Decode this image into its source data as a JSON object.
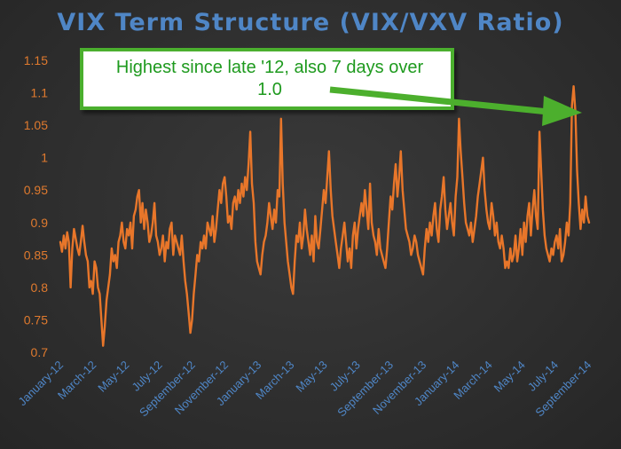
{
  "chart_data": {
    "type": "line",
    "title": "VIX Term Structure (VIX/VXV Ratio)",
    "xlabel": "",
    "ylabel": "",
    "ylim": [
      0.7,
      1.15
    ],
    "y_ticks": [
      "1.15",
      "1.1",
      "1.05",
      "1",
      "0.95",
      "0.9",
      "0.85",
      "0.8",
      "0.75",
      "0.7"
    ],
    "x_ticks": [
      "January-12",
      "March-12",
      "May-12",
      "July-12",
      "September-12",
      "November-12",
      "January-13",
      "March-13",
      "May-13",
      "July-13",
      "September-13",
      "November-13",
      "January-14",
      "March-14",
      "May-14",
      "July-14",
      "September-14"
    ],
    "grid": false,
    "legend": "none",
    "series": [
      {
        "color": "#e8762a",
        "x_range": [
          "2012-01",
          "2014-10"
        ],
        "values": [
          0.87,
          0.855,
          0.88,
          0.86,
          0.885,
          0.87,
          0.8,
          0.86,
          0.89,
          0.875,
          0.86,
          0.85,
          0.87,
          0.895,
          0.87,
          0.85,
          0.84,
          0.8,
          0.81,
          0.79,
          0.84,
          0.83,
          0.8,
          0.79,
          0.75,
          0.71,
          0.74,
          0.78,
          0.8,
          0.82,
          0.86,
          0.84,
          0.85,
          0.83,
          0.87,
          0.88,
          0.9,
          0.87,
          0.86,
          0.89,
          0.88,
          0.9,
          0.86,
          0.91,
          0.92,
          0.94,
          0.95,
          0.9,
          0.93,
          0.89,
          0.92,
          0.9,
          0.87,
          0.88,
          0.9,
          0.93,
          0.88,
          0.87,
          0.85,
          0.86,
          0.88,
          0.84,
          0.87,
          0.86,
          0.89,
          0.9,
          0.85,
          0.88,
          0.87,
          0.86,
          0.85,
          0.88,
          0.84,
          0.81,
          0.79,
          0.76,
          0.73,
          0.75,
          0.79,
          0.82,
          0.85,
          0.84,
          0.87,
          0.86,
          0.88,
          0.86,
          0.9,
          0.89,
          0.88,
          0.91,
          0.87,
          0.89,
          0.92,
          0.95,
          0.93,
          0.96,
          0.97,
          0.94,
          0.9,
          0.91,
          0.89,
          0.93,
          0.94,
          0.92,
          0.95,
          0.93,
          0.96,
          0.94,
          0.97,
          0.95,
          0.99,
          1.04,
          0.96,
          0.93,
          0.87,
          0.84,
          0.83,
          0.82,
          0.85,
          0.87,
          0.88,
          0.9,
          0.93,
          0.91,
          0.89,
          0.92,
          0.9,
          0.95,
          0.94,
          1.06,
          0.96,
          0.9,
          0.87,
          0.84,
          0.82,
          0.8,
          0.79,
          0.84,
          0.88,
          0.87,
          0.9,
          0.86,
          0.88,
          0.92,
          0.89,
          0.87,
          0.85,
          0.88,
          0.84,
          0.91,
          0.87,
          0.86,
          0.89,
          0.92,
          0.95,
          0.93,
          0.97,
          1.01,
          0.95,
          0.91,
          0.89,
          0.87,
          0.85,
          0.83,
          0.86,
          0.88,
          0.9,
          0.87,
          0.84,
          0.86,
          0.83,
          0.88,
          0.9,
          0.86,
          0.89,
          0.91,
          0.93,
          0.91,
          0.95,
          0.92,
          0.89,
          0.96,
          0.9,
          0.88,
          0.87,
          0.85,
          0.89,
          0.86,
          0.85,
          0.84,
          0.83,
          0.86,
          0.9,
          0.94,
          0.92,
          0.96,
          0.99,
          0.94,
          0.97,
          1.01,
          0.95,
          0.92,
          0.89,
          0.88,
          0.87,
          0.85,
          0.86,
          0.88,
          0.87,
          0.85,
          0.84,
          0.83,
          0.82,
          0.86,
          0.89,
          0.87,
          0.9,
          0.88,
          0.91,
          0.93,
          0.89,
          0.87,
          0.92,
          0.94,
          0.97,
          0.92,
          0.89,
          0.91,
          0.93,
          0.9,
          0.88,
          0.94,
          0.97,
          1.06,
          1.01,
          0.97,
          0.93,
          0.9,
          0.89,
          0.88,
          0.9,
          0.87,
          0.89,
          0.91,
          0.94,
          0.96,
          0.98,
          1.0,
          0.95,
          0.92,
          0.9,
          0.89,
          0.93,
          0.91,
          0.88,
          0.9,
          0.87,
          0.86,
          0.88,
          0.86,
          0.83,
          0.84,
          0.83,
          0.86,
          0.84,
          0.85,
          0.88,
          0.84,
          0.86,
          0.89,
          0.85,
          0.9,
          0.87,
          0.91,
          0.93,
          0.88,
          0.92,
          0.95,
          0.91,
          0.89,
          1.04,
          0.98,
          0.92,
          0.88,
          0.86,
          0.85,
          0.84,
          0.86,
          0.85,
          0.87,
          0.88,
          0.86,
          0.89,
          0.84,
          0.85,
          0.87,
          0.9,
          0.88,
          0.93,
          1.08,
          1.11,
          1.07,
          0.98,
          0.93,
          0.89,
          0.92,
          0.9,
          0.94,
          0.91,
          0.9
        ]
      }
    ],
    "annotation": {
      "text_line1": "Highest since late '12, also 7 days over",
      "text_line2": "1.0"
    }
  },
  "colors": {
    "background": "#2e2e2e",
    "line": "#e8762a",
    "title": "#4f86c6",
    "y_ticks": "#e07a2e",
    "x_ticks": "#4f86c6",
    "callout_border": "#4caf2d",
    "callout_text": "#1e9a1e",
    "arrow": "#4caf2d"
  }
}
